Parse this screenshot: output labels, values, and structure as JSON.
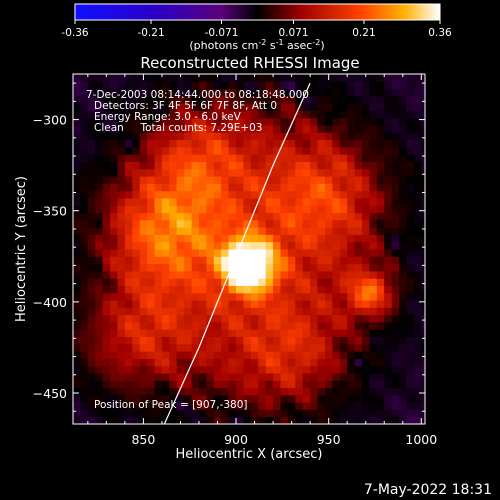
{
  "chart_data": {
    "type": "heatmap",
    "title": "Reconstructed RHESSI Image",
    "xlabel": "Heliocentric X (arcsec)",
    "ylabel": "Heliocentric Y (arcsec)",
    "xlim": [
      812,
      1002
    ],
    "ylim": [
      -467,
      -275
    ],
    "xticks": [
      850,
      900,
      950,
      1000
    ],
    "yticks": [
      -300,
      -350,
      -400,
      -450
    ],
    "colorbar": {
      "range": [
        -0.36,
        0.36
      ],
      "ticks": [
        "-0.36",
        "-0.21",
        "-0.071",
        "0.071",
        "0.21",
        "0.36"
      ],
      "unit_label": "(photons cm",
      "unit_sup1": "-2",
      "unit_mid1": " s",
      "unit_sup2": "-1",
      "unit_mid2": " asec",
      "unit_sup3": "-2",
      "unit_end": ")"
    },
    "annotations": [
      "7-Dec-2003 08:14:44.000 to 08:18:48.000",
      "Detectors: 3F 4F 5F 6F 7F 8F, Att 0",
      "Energy Range: 3.0 - 6.0 keV",
      "Clean     Total counts: 7.29E+03"
    ],
    "peak_label": "Position of Peak = [907,-380]",
    "peak": [
      907,
      -380
    ],
    "limb_curve": [
      [
        860,
        -470
      ],
      [
        880,
        -425
      ],
      [
        900,
        -375
      ],
      [
        920,
        -325
      ],
      [
        940,
        -280
      ]
    ],
    "sources": [
      {
        "x": 907,
        "y": -380,
        "amp": 0.36,
        "sigma": 10
      },
      {
        "x": 973,
        "y": -395,
        "amp": 0.2,
        "sigma": 9
      },
      {
        "x": 860,
        "y": -360,
        "amp": 0.16,
        "sigma": 22
      },
      {
        "x": 845,
        "y": -420,
        "amp": 0.12,
        "sigma": 20
      },
      {
        "x": 950,
        "y": -340,
        "amp": 0.12,
        "sigma": 22
      },
      {
        "x": 880,
        "y": -320,
        "amp": 0.1,
        "sigma": 18
      },
      {
        "x": 930,
        "y": -430,
        "amp": 0.09,
        "sigma": 20
      }
    ]
  },
  "footer": {
    "timestamp": "7-May-2022 18:31"
  }
}
